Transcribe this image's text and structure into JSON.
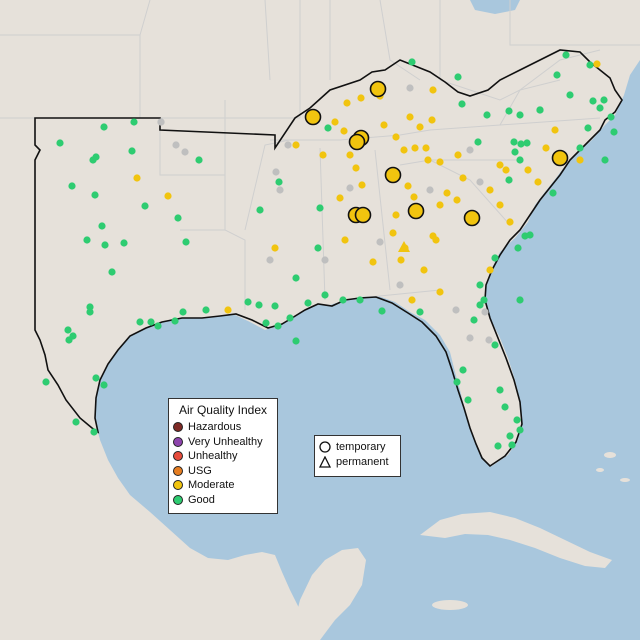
{
  "map": {
    "state_boundary_color": "#cfcfcf",
    "region_outline_color": "#111111",
    "land_color": "#e6e1da",
    "water_color": "#a9c7dd",
    "gray_color": "#bfbfbf"
  },
  "legend": {
    "title": "Air Quality Index",
    "items": [
      {
        "label": "Hazardous",
        "color": "#7e2a25"
      },
      {
        "label": "Very Unhealthy",
        "color": "#8e44ad"
      },
      {
        "label": "Unhealthy",
        "color": "#e74c3c"
      },
      {
        "label": "USG",
        "color": "#e67e22"
      },
      {
        "label": "Moderate",
        "color": "#f1c40f"
      },
      {
        "label": "Good",
        "color": "#2ecc71"
      }
    ]
  },
  "type_legend": {
    "items": [
      {
        "label": "temporary",
        "symbol": "circle-icon"
      },
      {
        "label": "permanent",
        "symbol": "triangle-icon"
      }
    ]
  }
}
